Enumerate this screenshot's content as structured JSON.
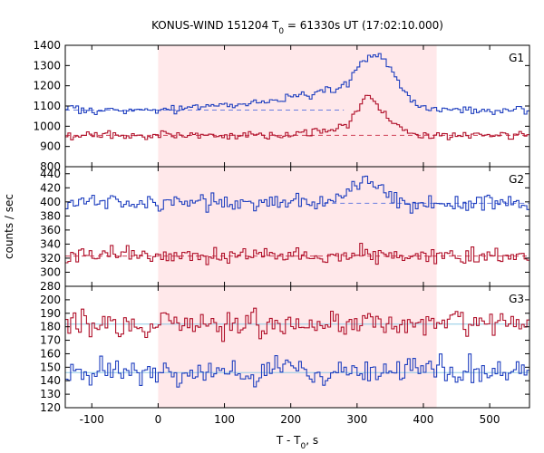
{
  "chart_data": {
    "type": "line",
    "title": "KONUS-WIND 151204 T",
    "title_sub": "0",
    "title_rest": " = 61330s UT (17:02:10.000)",
    "xlabel": "T - T",
    "xlabel_sub": "0",
    "xlabel_rest": ", s",
    "ylabel": "counts / sec",
    "xlim": [
      -140,
      560
    ],
    "x_ticks": [
      -100,
      0,
      100,
      200,
      300,
      400,
      500
    ],
    "highlight_interval": [
      0,
      420
    ],
    "highlight_color": "#ffe8ea",
    "panels": [
      {
        "label": "G1",
        "ylim": [
          800,
          1400
        ],
        "y_ticks": [
          800,
          900,
          1000,
          1100,
          1200,
          1300,
          1400
        ],
        "series": [
          {
            "color": "#1f3fbf",
            "background_level": 1080,
            "bg_line_color": "#6a7ee0",
            "bg_dash_x": [
              -140,
              280
            ],
            "peaks": [
              [
                280,
                60,
                80
              ],
              [
                320,
                22,
                180
              ],
              [
                350,
                18,
                80
              ],
              [
                190,
                90,
                30
              ]
            ]
          },
          {
            "color": "#b0102a",
            "background_level": 955,
            "bg_line_color": "#d04055",
            "bg_dash_x": [
              -140,
              560
            ],
            "peaks": [
              [
                315,
                16,
                170
              ],
              [
                350,
                14,
                60
              ],
              [
                270,
                40,
                30
              ]
            ]
          }
        ]
      },
      {
        "label": "G2",
        "ylim": [
          280,
          450
        ],
        "y_ticks": [
          280,
          300,
          320,
          340,
          360,
          380,
          400,
          420,
          440
        ],
        "series": [
          {
            "color": "#1f3fbf",
            "background_level": 398,
            "bg_line_color": "#6a7ee0",
            "bg_dash_x": [
              250,
              560
            ],
            "peaks": [
              [
                320,
                20,
                25
              ],
              [
                285,
                25,
                8
              ]
            ]
          },
          {
            "color": "#b0102a",
            "background_level": 323,
            "bg_line_color": "#d04055",
            "bg_dash_x": [
              -140,
              560
            ],
            "peaks": [
              [
                300,
                30,
                6
              ]
            ]
          }
        ]
      },
      {
        "label": "G3",
        "ylim": [
          120,
          210
        ],
        "y_ticks": [
          120,
          130,
          140,
          150,
          160,
          170,
          180,
          190,
          200
        ],
        "series": [
          {
            "color": "#b0102a",
            "background_level": 182,
            "bg_line_color": "#8ec9e6",
            "bg_dash_x": [
              -140,
              560
            ],
            "peaks": []
          },
          {
            "color": "#1f3fbf",
            "background_level": 146,
            "bg_line_color": "#8ec9e6",
            "bg_dash_x": [
              -140,
              560
            ],
            "peaks": []
          }
        ]
      }
    ]
  }
}
